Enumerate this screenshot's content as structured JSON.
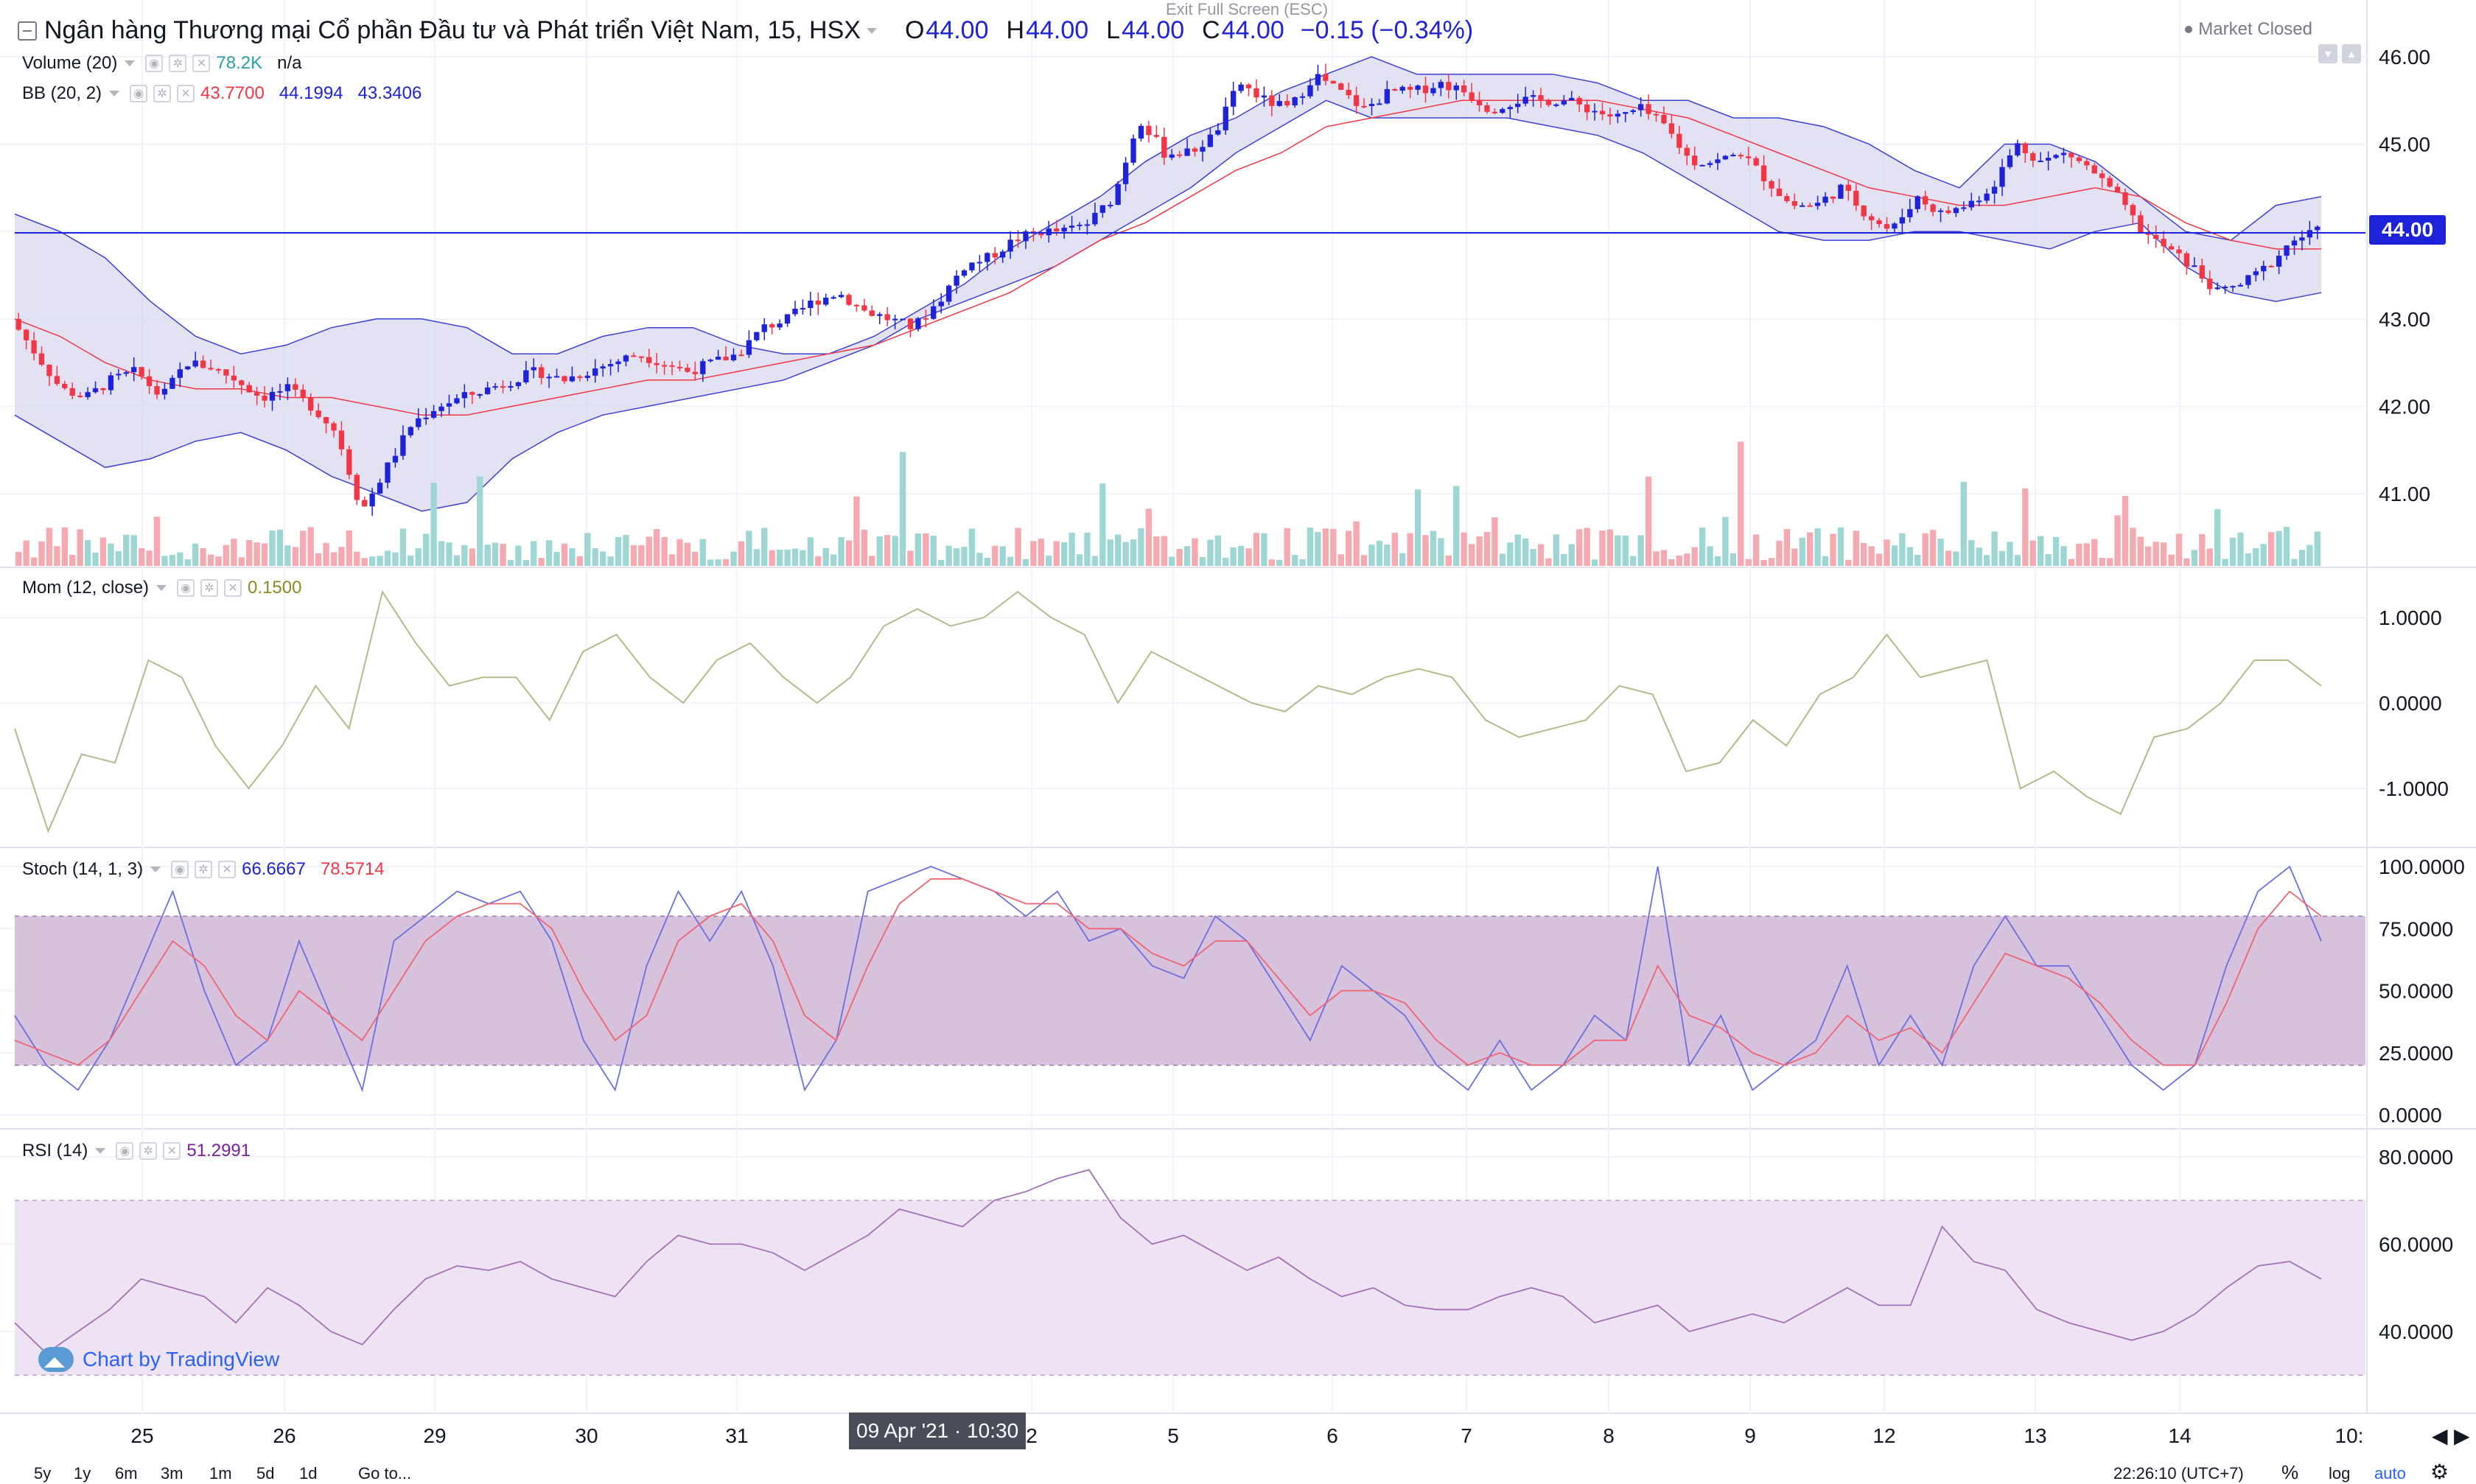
{
  "header": {
    "symbol_title": "Ngân hàng Thương mại Cổ phần Đầu tư và Phát triển Việt Nam, 15, HSX",
    "open_label": "O",
    "open": "44.00",
    "high_label": "H",
    "high": "44.00",
    "low_label": "L",
    "low": "44.00",
    "close_label": "C",
    "close": "44.00",
    "change": "−0.15 (−0.34%)",
    "fullscreen_exit": "Exit Full Screen (ESC)",
    "market_status": "Market Closed"
  },
  "indicators": {
    "volume": {
      "name": "Volume (20)",
      "value1": "78.2K",
      "value2": "n/a",
      "color1": "#2ba0a6"
    },
    "bb": {
      "name": "BB (20, 2)",
      "v1": "43.7700",
      "v2": "44.1994",
      "v3": "43.3406",
      "c1": "#f23645",
      "c2": "#1e22d8",
      "c3": "#1e22d8"
    },
    "mom": {
      "name": "Mom (12, close)",
      "value": "0.1500",
      "color": "#8b8b28"
    },
    "stoch": {
      "name": "Stoch (14, 1, 3)",
      "k": "66.6667",
      "d": "78.5714",
      "ck": "#1e22d8",
      "cd": "#f23645"
    },
    "rsi": {
      "name": "RSI (14)",
      "value": "51.2991",
      "color": "#7b1fa2"
    }
  },
  "last_price_badge": "44.00",
  "crosshair_time": "09 Apr '21 · 10:30",
  "watermark": "Chart by TradingView",
  "price_axis": [
    "46.00",
    "45.00",
    "44.00",
    "43.00",
    "42.00",
    "41.00"
  ],
  "mom_axis": [
    "1.0000",
    "0.0000",
    "-1.0000"
  ],
  "stoch_axis": [
    "100.0000",
    "75.0000",
    "50.0000",
    "25.0000",
    "0.0000"
  ],
  "rsi_axis": [
    "80.0000",
    "60.0000",
    "40.0000"
  ],
  "time_axis": [
    "25",
    "26",
    "29",
    "30",
    "31",
    "2",
    "5",
    "6",
    "7",
    "8",
    "9",
    "12",
    "13",
    "14",
    "10:"
  ],
  "bottom_bar": {
    "ranges": [
      "5y",
      "1y",
      "6m",
      "3m",
      "1m",
      "5d",
      "1d"
    ],
    "goto": "Go to...",
    "clock": "22:26:10 (UTC+7)",
    "percent": "%",
    "log": "log",
    "auto": "auto"
  },
  "colors": {
    "up": "#1e22d8",
    "down": "#f23645",
    "bb_fill": "#d8d8ef",
    "stoch_band": "#d7c2de",
    "rsi_band": "#eee3f2",
    "mom_line": "#b8b88a"
  },
  "chart_data": [
    {
      "type": "candlestick",
      "title": "Ngân hàng Thương mại Cổ phần Đầu tư và Phát triển Việt Nam, 15, HSX",
      "x": [
        "25",
        "26",
        "29",
        "30",
        "31",
        "2",
        "5",
        "6",
        "7",
        "8",
        "9",
        "12",
        "13",
        "14"
      ],
      "ylim": [
        40.2,
        46.25
      ],
      "price_path": [
        43.0,
        42.6,
        42.2,
        42.1,
        42.3,
        42.4,
        42.1,
        42.5,
        42.45,
        42.3,
        42.1,
        42.2,
        42.0,
        41.7,
        40.8,
        41.3,
        41.8,
        42.0,
        42.1,
        42.2,
        42.3,
        42.4,
        42.3,
        42.4,
        42.5,
        42.6,
        42.5,
        42.4,
        42.5,
        42.6,
        42.9,
        43.0,
        43.2,
        43.3,
        43.1,
        43.0,
        42.9,
        43.2,
        43.6,
        43.7,
        43.9,
        44.0,
        44.0,
        44.1,
        44.4,
        45.3,
        44.9,
        44.9,
        45.1,
        45.7,
        45.5,
        45.4,
        45.8,
        45.6,
        45.4,
        45.6,
        45.6,
        45.7,
        45.6,
        45.4,
        45.5,
        45.5,
        45.5,
        45.4,
        45.3,
        45.4,
        45.2,
        44.8,
        44.8,
        44.9,
        44.6,
        44.3,
        44.3,
        44.5,
        44.2,
        44.0,
        44.4,
        44.2,
        44.3,
        44.5,
        45.0,
        44.8,
        44.9,
        44.7,
        44.4,
        44.0,
        43.8,
        43.6,
        43.3,
        43.4,
        43.6,
        43.9,
        44.0
      ],
      "bb_upper": [
        44.2,
        44.0,
        43.7,
        43.2,
        42.8,
        42.6,
        42.7,
        42.9,
        43.0,
        43.0,
        42.9,
        42.6,
        42.6,
        42.8,
        42.9,
        42.9,
        42.7,
        42.6,
        42.6,
        42.8,
        43.1,
        43.4,
        43.8,
        44.1,
        44.4,
        44.8,
        45.1,
        45.3,
        45.6,
        45.8,
        46.0,
        45.8,
        45.8,
        45.8,
        45.8,
        45.7,
        45.5,
        45.5,
        45.3,
        45.3,
        45.2,
        45.0,
        44.7,
        44.5,
        45.0,
        45.0,
        44.8,
        44.4,
        44.0,
        43.9,
        44.3,
        44.4
      ],
      "bb_mid": [
        43.0,
        42.8,
        42.5,
        42.3,
        42.2,
        42.2,
        42.1,
        42.1,
        42.0,
        41.9,
        41.9,
        42.0,
        42.1,
        42.2,
        42.3,
        42.3,
        42.4,
        42.5,
        42.6,
        42.7,
        42.9,
        43.1,
        43.3,
        43.6,
        43.9,
        44.1,
        44.4,
        44.7,
        44.9,
        45.2,
        45.3,
        45.4,
        45.5,
        45.5,
        45.5,
        45.5,
        45.4,
        45.3,
        45.1,
        44.9,
        44.7,
        44.5,
        44.4,
        44.3,
        44.3,
        44.4,
        44.5,
        44.4,
        44.1,
        43.9,
        43.8,
        43.8
      ],
      "bb_lower": [
        41.9,
        41.6,
        41.3,
        41.4,
        41.6,
        41.7,
        41.5,
        41.2,
        41.0,
        40.8,
        40.9,
        41.4,
        41.7,
        41.9,
        42.0,
        42.1,
        42.2,
        42.3,
        42.5,
        42.7,
        43.0,
        43.2,
        43.4,
        43.6,
        43.9,
        44.2,
        44.5,
        44.9,
        45.2,
        45.5,
        45.3,
        45.3,
        45.3,
        45.3,
        45.2,
        45.1,
        44.9,
        44.6,
        44.3,
        44.0,
        43.9,
        43.9,
        44.0,
        44.0,
        43.9,
        43.8,
        44.0,
        44.1,
        43.6,
        43.3,
        43.2,
        43.3
      ]
    },
    {
      "type": "line",
      "title": "Mom (12, close)",
      "ylim": [
        -1.6,
        1.4
      ],
      "values": [
        -0.3,
        -1.5,
        -0.6,
        -0.7,
        0.5,
        0.3,
        -0.5,
        -1.0,
        -0.5,
        0.2,
        -0.3,
        1.3,
        0.7,
        0.2,
        0.3,
        0.3,
        -0.2,
        0.6,
        0.8,
        0.3,
        0.0,
        0.5,
        0.7,
        0.3,
        0.0,
        0.3,
        0.9,
        1.1,
        0.9,
        1.0,
        1.3,
        1.0,
        0.8,
        0.0,
        0.6,
        0.4,
        0.2,
        0.0,
        -0.1,
        0.2,
        0.1,
        0.3,
        0.4,
        0.3,
        -0.2,
        -0.4,
        -0.3,
        -0.2,
        0.2,
        0.1,
        -0.8,
        -0.7,
        -0.2,
        -0.5,
        0.1,
        0.3,
        0.8,
        0.3,
        0.4,
        0.5,
        -1.0,
        -0.8,
        -1.1,
        -1.3,
        -0.4,
        -0.3,
        0.0,
        0.5,
        0.5,
        0.2
      ]
    },
    {
      "type": "line",
      "title": "Stoch (14, 1, 3)",
      "ylim": [
        0,
        100
      ],
      "series": [
        {
          "values": [
            40,
            20,
            10,
            30,
            60,
            90,
            50,
            20,
            30,
            70,
            40,
            10,
            70,
            80,
            90,
            85,
            90,
            70,
            30,
            10,
            60,
            90,
            70,
            90,
            60,
            10,
            30,
            90,
            95,
            100,
            95,
            90,
            80,
            90,
            70,
            75,
            60,
            55,
            80,
            70,
            50,
            30,
            60,
            50,
            40,
            20,
            10,
            30,
            10,
            20,
            40,
            30,
            100,
            20,
            40,
            10,
            20,
            30,
            60,
            20,
            40,
            20,
            60,
            80,
            60,
            60,
            40,
            20,
            10,
            20,
            60,
            90,
            100,
            70
          ]
        },
        {
          "values": [
            30,
            25,
            20,
            30,
            50,
            70,
            60,
            40,
            30,
            50,
            40,
            30,
            50,
            70,
            80,
            85,
            85,
            75,
            50,
            30,
            40,
            70,
            80,
            85,
            70,
            40,
            30,
            60,
            85,
            95,
            95,
            90,
            85,
            85,
            75,
            75,
            65,
            60,
            70,
            70,
            55,
            40,
            50,
            50,
            45,
            30,
            20,
            25,
            20,
            20,
            30,
            30,
            60,
            40,
            35,
            25,
            20,
            25,
            40,
            30,
            35,
            25,
            45,
            65,
            60,
            55,
            45,
            30,
            20,
            20,
            45,
            75,
            90,
            80
          ]
        }
      ]
    },
    {
      "type": "line",
      "title": "RSI (14)",
      "ylim": [
        30,
        85
      ],
      "values": [
        42,
        35,
        40,
        45,
        52,
        50,
        48,
        42,
        50,
        46,
        40,
        37,
        45,
        52,
        55,
        54,
        56,
        52,
        50,
        48,
        56,
        62,
        60,
        60,
        58,
        54,
        58,
        62,
        68,
        66,
        64,
        70,
        72,
        75,
        77,
        66,
        60,
        62,
        58,
        54,
        57,
        52,
        48,
        50,
        46,
        45,
        45,
        48,
        50,
        48,
        42,
        44,
        46,
        40,
        42,
        44,
        42,
        46,
        50,
        46,
        46,
        64,
        56,
        54,
        45,
        42,
        40,
        38,
        40,
        44,
        50,
        55,
        56,
        52
      ]
    }
  ]
}
